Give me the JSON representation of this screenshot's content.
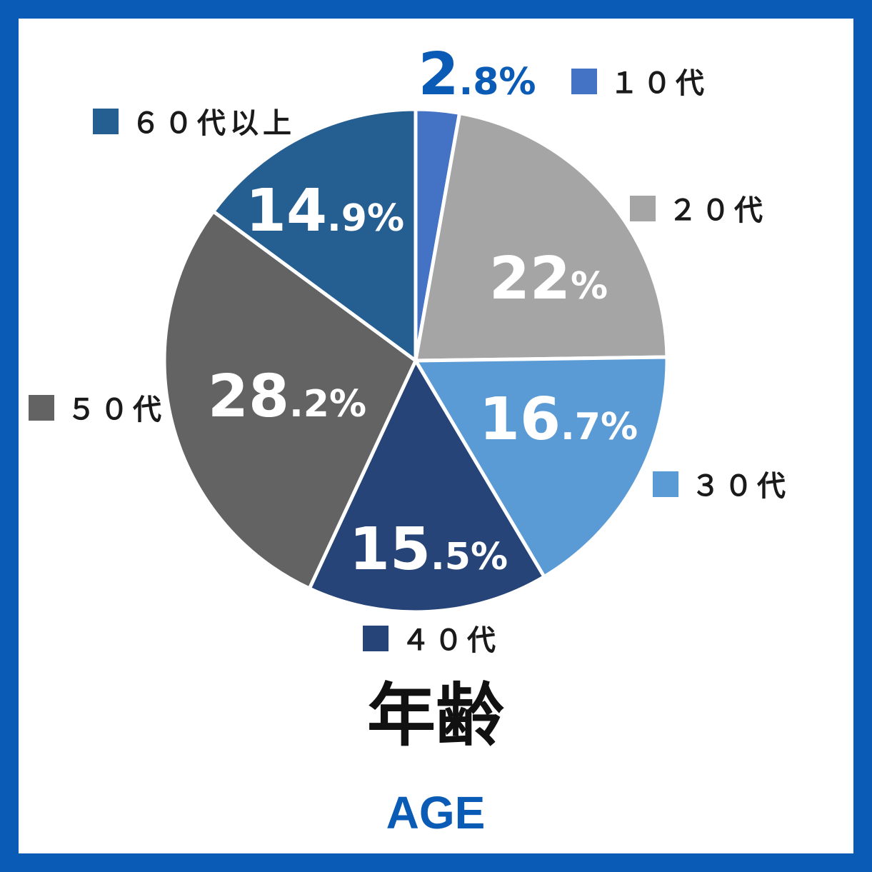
{
  "chart_data": {
    "type": "pie",
    "title": "年齢",
    "subtitle": "AGE",
    "start_angle_deg": 0,
    "direction": "clockwise",
    "legend": "per-slice",
    "slices": [
      {
        "label": "１０代",
        "value": 2.8,
        "display_int": "2",
        "display_dec": ".8%",
        "color": "#4472c4",
        "text_color": "#0a5bb5"
      },
      {
        "label": "２０代",
        "value": 22,
        "display_int": "22",
        "display_dec": "%",
        "color": "#a5a5a5",
        "text_color": "#ffffff"
      },
      {
        "label": "３０代",
        "value": 16.7,
        "display_int": "16",
        "display_dec": ".7%",
        "color": "#5b9bd5",
        "text_color": "#ffffff"
      },
      {
        "label": "４０代",
        "value": 15.5,
        "display_int": "15",
        "display_dec": ".5%",
        "color": "#264478",
        "text_color": "#ffffff"
      },
      {
        "label": "５０代",
        "value": 28.2,
        "display_int": "28",
        "display_dec": ".2%",
        "color": "#636363",
        "text_color": "#ffffff"
      },
      {
        "label": "６０代以上",
        "value": 14.9,
        "display_int": "14",
        "display_dec": ".9%",
        "color": "#255e91",
        "text_color": "#ffffff"
      }
    ]
  }
}
